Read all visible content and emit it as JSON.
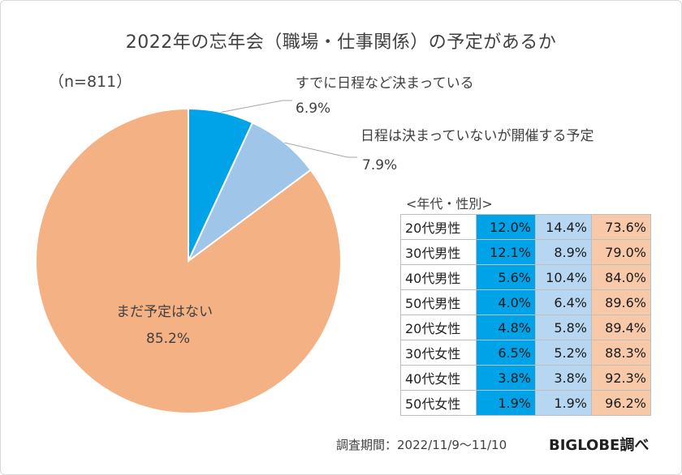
{
  "title": "2022年の忘年会（職場・仕事関係）の予定があるか",
  "sample": "（n=811）",
  "chart_data": [
    {
      "type": "pie",
      "title": "2022年の忘年会（職場・仕事関係）の予定があるか",
      "labels": [
        "すでに日程など決まっている",
        "日程は決まっていないが開催する予定",
        "まだ予定はない"
      ],
      "values": [
        6.9,
        7.9,
        85.2
      ],
      "value_labels": [
        "6.9%",
        "7.9%",
        "85.2%"
      ],
      "colors": [
        "#00a2e8",
        "#9fc5e8",
        "#f4b183"
      ]
    },
    {
      "type": "table",
      "title": "<年代・性別>",
      "rows": [
        {
          "label": "20代男性",
          "values": [
            "12.0%",
            "14.4%",
            "73.6%"
          ]
        },
        {
          "label": "30代男性",
          "values": [
            "12.1%",
            "8.9%",
            "79.0%"
          ]
        },
        {
          "label": "40代男性",
          "values": [
            "5.6%",
            "10.4%",
            "84.0%"
          ]
        },
        {
          "label": "50代男性",
          "values": [
            "4.0%",
            "6.4%",
            "89.6%"
          ]
        },
        {
          "label": "20代女性",
          "values": [
            "4.8%",
            "5.8%",
            "89.4%"
          ]
        },
        {
          "label": "30代女性",
          "values": [
            "6.5%",
            "5.2%",
            "88.3%"
          ]
        },
        {
          "label": "40代女性",
          "values": [
            "3.8%",
            "3.8%",
            "92.3%"
          ]
        },
        {
          "label": "50代女性",
          "values": [
            "1.9%",
            "1.9%",
            "96.2%"
          ]
        }
      ]
    }
  ],
  "footer": {
    "period": "調査期間：2022/11/9～11/10",
    "brand": "BIGLOBE調べ"
  }
}
